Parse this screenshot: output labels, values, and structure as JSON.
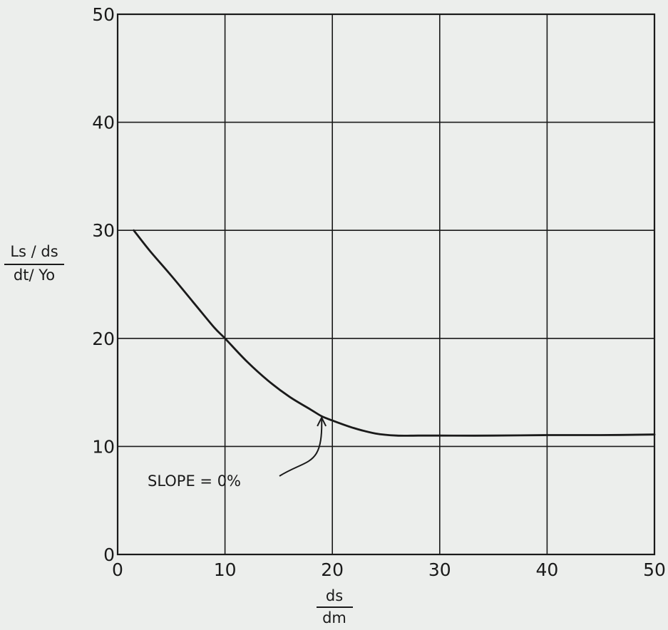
{
  "chart_data": {
    "type": "line",
    "title": "",
    "xlabel": {
      "numerator": "ds",
      "denominator": "dm"
    },
    "ylabel": {
      "numerator": "Ls / ds",
      "denominator": "dt/ Yo"
    },
    "xlim": [
      0,
      50
    ],
    "ylim": [
      0,
      50
    ],
    "xticks": [
      "0",
      "10",
      "20",
      "30",
      "40",
      "50"
    ],
    "yticks": [
      "0",
      "10",
      "20",
      "30",
      "40",
      "50"
    ],
    "grid": true,
    "series": [
      {
        "x": [
          1.5,
          3,
          5,
          7,
          9,
          10,
          12,
          14,
          16,
          18,
          19,
          20,
          22,
          24,
          26,
          28,
          30,
          35,
          40,
          45,
          50
        ],
        "y": [
          30,
          28.1,
          25.8,
          23.4,
          21.0,
          20.0,
          17.9,
          16.1,
          14.6,
          13.4,
          12.8,
          12.4,
          11.7,
          11.2,
          11.0,
          11.0,
          11.0,
          11.0,
          11.05,
          11.05,
          11.1
        ]
      }
    ],
    "annotations": [
      {
        "text": "SLOPE = 0%",
        "x": 19,
        "y": 12.8
      }
    ]
  }
}
